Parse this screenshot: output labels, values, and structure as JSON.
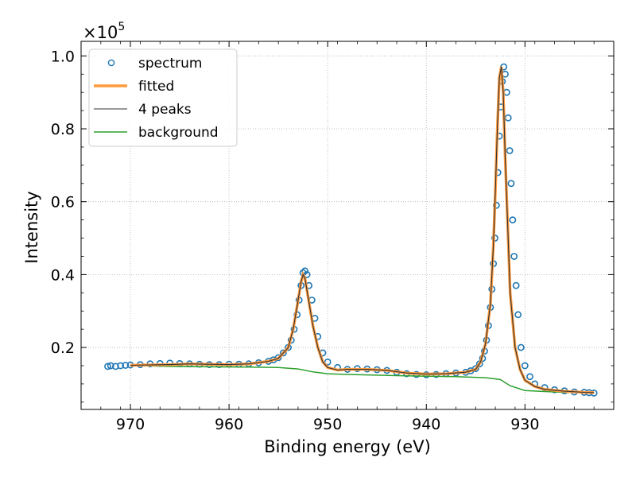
{
  "chart_data": {
    "type": "line",
    "xlabel": "Binding energy (eV)",
    "ylabel": "Intensity",
    "y_multiplier_label": "×10",
    "y_multiplier_exponent": "5",
    "xlim": [
      975,
      921
    ],
    "ylim": [
      0.03,
      1.04
    ],
    "x_ticks": [
      970,
      960,
      950,
      940,
      930
    ],
    "x_tick_labels": [
      "970",
      "960",
      "950",
      "940",
      "930"
    ],
    "y_ticks": [
      0.2,
      0.4,
      0.6,
      0.8,
      1.0
    ],
    "y_tick_labels": [
      "0.2",
      "0.4",
      "0.6",
      "0.8",
      "1.0"
    ],
    "y_unit_scale": 100000,
    "x_reversed": true,
    "grid": true,
    "legend_position": "top-left",
    "legend": [
      {
        "label": "spectrum",
        "kind": "marker",
        "color": "#1f77b4"
      },
      {
        "label": "fitted",
        "kind": "line",
        "color": "#ff9a3c"
      },
      {
        "label": "4 peaks",
        "kind": "line",
        "color": "#333333"
      },
      {
        "label": "background",
        "kind": "line",
        "color": "#2ca02c"
      }
    ],
    "series": [
      {
        "name": "background",
        "color": "#2ca02c",
        "x": [
          970,
          966,
          962,
          958,
          955,
          953,
          951.5,
          950,
          948,
          945,
          942,
          940,
          937,
          934,
          932.5,
          931.5,
          930,
          928,
          926,
          924,
          923
        ],
        "y": [
          0.151,
          0.148,
          0.147,
          0.146,
          0.145,
          0.141,
          0.133,
          0.128,
          0.126,
          0.124,
          0.122,
          0.121,
          0.12,
          0.117,
          0.112,
          0.095,
          0.082,
          0.079,
          0.077,
          0.076,
          0.075
        ]
      },
      {
        "name": "4 peaks",
        "color": "#333333",
        "x": [
          970,
          966,
          964,
          962,
          960,
          958,
          956,
          955,
          954,
          953.5,
          953,
          952.7,
          952.5,
          952.3,
          952,
          951.5,
          951,
          950.5,
          950,
          949,
          948,
          946,
          944,
          942,
          940,
          938,
          936,
          935,
          934.5,
          934,
          933.5,
          933.2,
          933,
          932.8,
          932.6,
          932.4,
          932.2,
          932,
          931.7,
          931.5,
          931,
          930.5,
          930,
          929,
          928,
          926,
          924,
          923
        ],
        "y": [
          0.151,
          0.153,
          0.155,
          0.154,
          0.153,
          0.155,
          0.162,
          0.17,
          0.2,
          0.25,
          0.33,
          0.38,
          0.4,
          0.39,
          0.34,
          0.26,
          0.2,
          0.16,
          0.145,
          0.138,
          0.14,
          0.14,
          0.137,
          0.13,
          0.127,
          0.128,
          0.132,
          0.14,
          0.16,
          0.21,
          0.32,
          0.48,
          0.63,
          0.8,
          0.94,
          0.97,
          0.9,
          0.72,
          0.5,
          0.35,
          0.2,
          0.14,
          0.11,
          0.093,
          0.085,
          0.08,
          0.077,
          0.076
        ]
      },
      {
        "name": "fitted",
        "color": "#ff9a3c",
        "x": [
          970,
          966,
          964,
          962,
          960,
          958,
          956,
          955,
          954,
          953.5,
          953,
          952.7,
          952.5,
          952.3,
          952,
          951.5,
          951,
          950.5,
          950,
          949,
          948,
          946,
          944,
          942,
          940,
          938,
          936,
          935,
          934.5,
          934,
          933.5,
          933.2,
          933,
          932.8,
          932.6,
          932.4,
          932.2,
          932,
          931.7,
          931.5,
          931,
          930.5,
          930,
          929,
          928,
          926,
          924,
          923
        ],
        "y": [
          0.151,
          0.153,
          0.155,
          0.154,
          0.153,
          0.155,
          0.162,
          0.17,
          0.2,
          0.25,
          0.33,
          0.38,
          0.4,
          0.39,
          0.34,
          0.26,
          0.2,
          0.16,
          0.145,
          0.138,
          0.14,
          0.14,
          0.137,
          0.13,
          0.127,
          0.128,
          0.132,
          0.14,
          0.16,
          0.21,
          0.32,
          0.48,
          0.63,
          0.8,
          0.94,
          0.97,
          0.9,
          0.72,
          0.5,
          0.35,
          0.2,
          0.14,
          0.11,
          0.093,
          0.085,
          0.08,
          0.077,
          0.076
        ]
      },
      {
        "name": "spectrum",
        "color": "#1f77b4",
        "marker": "circle",
        "x": [
          972.3,
          972,
          971.5,
          971,
          970.5,
          970,
          969,
          968,
          967,
          966,
          965,
          964,
          963,
          962,
          961,
          960,
          959,
          958,
          957,
          956,
          955.5,
          955,
          954.5,
          954,
          953.7,
          953.4,
          953.1,
          952.9,
          952.7,
          952.5,
          952.3,
          952.1,
          951.9,
          951.6,
          951.3,
          951,
          950.5,
          950,
          949,
          948,
          947,
          946,
          945,
          944,
          943,
          942,
          941,
          940,
          939,
          938,
          937,
          936,
          935.5,
          935,
          934.6,
          934.3,
          934.1,
          933.9,
          933.7,
          933.5,
          933.35,
          933.2,
          933.05,
          932.9,
          932.75,
          932.6,
          932.45,
          932.3,
          932.15,
          932,
          931.85,
          931.7,
          931.55,
          931.4,
          931.25,
          931.1,
          930.9,
          930.7,
          930.4,
          930,
          929.5,
          929,
          928,
          927,
          926,
          925,
          924,
          923.5,
          923
        ],
        "y": [
          0.148,
          0.15,
          0.148,
          0.15,
          0.151,
          0.152,
          0.153,
          0.155,
          0.156,
          0.157,
          0.156,
          0.155,
          0.154,
          0.153,
          0.153,
          0.154,
          0.154,
          0.155,
          0.158,
          0.162,
          0.166,
          0.172,
          0.185,
          0.2,
          0.22,
          0.25,
          0.29,
          0.33,
          0.37,
          0.405,
          0.41,
          0.4,
          0.37,
          0.33,
          0.28,
          0.23,
          0.185,
          0.16,
          0.145,
          0.14,
          0.142,
          0.141,
          0.139,
          0.137,
          0.132,
          0.128,
          0.126,
          0.125,
          0.126,
          0.128,
          0.13,
          0.132,
          0.136,
          0.142,
          0.155,
          0.17,
          0.19,
          0.22,
          0.26,
          0.31,
          0.36,
          0.43,
          0.5,
          0.59,
          0.68,
          0.78,
          0.86,
          0.93,
          0.97,
          0.95,
          0.9,
          0.83,
          0.74,
          0.65,
          0.55,
          0.45,
          0.37,
          0.29,
          0.2,
          0.15,
          0.12,
          0.1,
          0.09,
          0.084,
          0.081,
          0.078,
          0.077,
          0.076,
          0.075
        ]
      }
    ]
  }
}
